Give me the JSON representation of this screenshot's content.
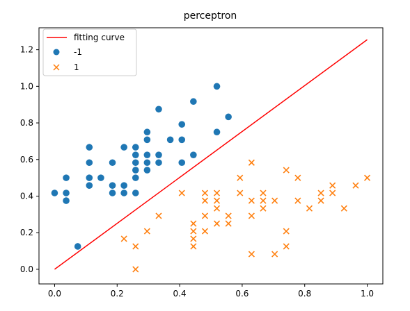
{
  "chart_data": {
    "type": "scatter",
    "title": "perceptron",
    "xlabel": "",
    "ylabel": "",
    "xlim": [
      -0.05,
      1.05
    ],
    "ylim": [
      -0.08,
      1.32
    ],
    "x_ticks": [
      0.0,
      0.2,
      0.4,
      0.6,
      0.8,
      1.0
    ],
    "y_ticks": [
      0.0,
      0.2,
      0.4,
      0.6,
      0.8,
      1.0,
      1.2
    ],
    "x_tick_labels": [
      "0.0",
      "0.2",
      "0.4",
      "0.6",
      "0.8",
      "1.0"
    ],
    "y_tick_labels": [
      "0.0",
      "0.2",
      "0.4",
      "0.6",
      "0.8",
      "1.0",
      "1.2"
    ],
    "grid": false,
    "legend": {
      "position": "top-left",
      "entries": [
        "fitting curve",
        "-1",
        "1"
      ]
    },
    "line": {
      "name": "fitting curve",
      "color": "#ff0000",
      "points": [
        [
          0.0,
          0.0
        ],
        [
          1.0,
          1.255
        ]
      ]
    },
    "series": [
      {
        "name": "-1",
        "marker": "circle",
        "color": "#1f77b4",
        "points": [
          [
            0.0,
            0.417
          ],
          [
            0.037,
            0.5
          ],
          [
            0.037,
            0.417
          ],
          [
            0.037,
            0.375
          ],
          [
            0.074,
            0.125
          ],
          [
            0.111,
            0.667
          ],
          [
            0.111,
            0.583
          ],
          [
            0.111,
            0.5
          ],
          [
            0.111,
            0.458
          ],
          [
            0.148,
            0.5
          ],
          [
            0.185,
            0.583
          ],
          [
            0.185,
            0.458
          ],
          [
            0.185,
            0.417
          ],
          [
            0.222,
            0.667
          ],
          [
            0.222,
            0.458
          ],
          [
            0.222,
            0.417
          ],
          [
            0.259,
            0.667
          ],
          [
            0.259,
            0.625
          ],
          [
            0.259,
            0.583
          ],
          [
            0.259,
            0.542
          ],
          [
            0.259,
            0.5
          ],
          [
            0.259,
            0.417
          ],
          [
            0.296,
            0.75
          ],
          [
            0.296,
            0.708
          ],
          [
            0.296,
            0.625
          ],
          [
            0.296,
            0.583
          ],
          [
            0.296,
            0.542
          ],
          [
            0.333,
            0.875
          ],
          [
            0.333,
            0.625
          ],
          [
            0.333,
            0.583
          ],
          [
            0.37,
            0.708
          ],
          [
            0.407,
            0.792
          ],
          [
            0.407,
            0.708
          ],
          [
            0.407,
            0.583
          ],
          [
            0.444,
            0.917
          ],
          [
            0.444,
            0.625
          ],
          [
            0.519,
            1.0
          ],
          [
            0.519,
            0.75
          ],
          [
            0.556,
            0.833
          ]
        ]
      },
      {
        "name": "1",
        "marker": "x",
        "color": "#ff7f0e",
        "points": [
          [
            0.222,
            0.167
          ],
          [
            0.259,
            0.125
          ],
          [
            0.259,
            0.0
          ],
          [
            0.296,
            0.208
          ],
          [
            0.333,
            0.292
          ],
          [
            0.407,
            0.417
          ],
          [
            0.444,
            0.25
          ],
          [
            0.444,
            0.208
          ],
          [
            0.444,
            0.167
          ],
          [
            0.444,
            0.125
          ],
          [
            0.481,
            0.417
          ],
          [
            0.481,
            0.375
          ],
          [
            0.481,
            0.292
          ],
          [
            0.481,
            0.208
          ],
          [
            0.519,
            0.417
          ],
          [
            0.519,
            0.375
          ],
          [
            0.519,
            0.333
          ],
          [
            0.519,
            0.25
          ],
          [
            0.556,
            0.292
          ],
          [
            0.556,
            0.25
          ],
          [
            0.593,
            0.5
          ],
          [
            0.593,
            0.417
          ],
          [
            0.63,
            0.583
          ],
          [
            0.63,
            0.375
          ],
          [
            0.63,
            0.292
          ],
          [
            0.63,
            0.083
          ],
          [
            0.667,
            0.417
          ],
          [
            0.667,
            0.375
          ],
          [
            0.667,
            0.333
          ],
          [
            0.704,
            0.375
          ],
          [
            0.704,
            0.083
          ],
          [
            0.741,
            0.542
          ],
          [
            0.741,
            0.208
          ],
          [
            0.741,
            0.125
          ],
          [
            0.778,
            0.5
          ],
          [
            0.778,
            0.375
          ],
          [
            0.815,
            0.333
          ],
          [
            0.852,
            0.417
          ],
          [
            0.852,
            0.375
          ],
          [
            0.889,
            0.458
          ],
          [
            0.889,
            0.417
          ],
          [
            0.926,
            0.333
          ],
          [
            0.963,
            0.458
          ],
          [
            1.0,
            0.5
          ]
        ]
      }
    ]
  }
}
